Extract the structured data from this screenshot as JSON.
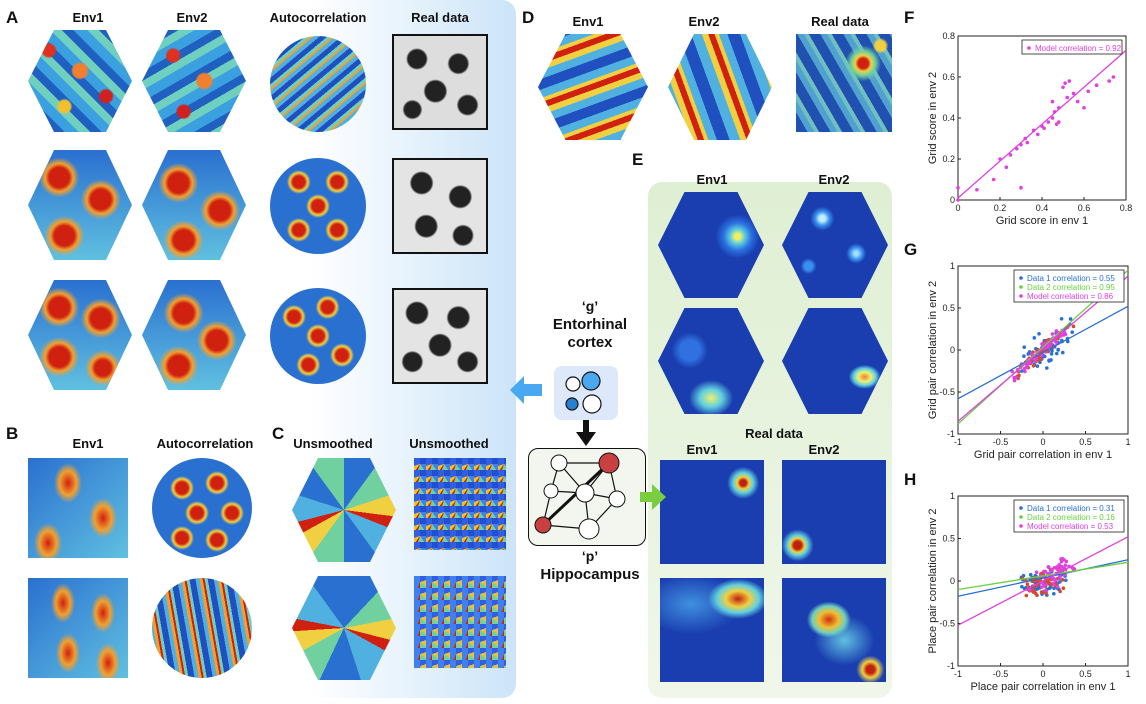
{
  "panels": {
    "A": {
      "label": "A",
      "headers": [
        "Env1",
        "Env2",
        "Autocorrelation",
        "Real data"
      ]
    },
    "B": {
      "label": "B",
      "headers": [
        "Env1",
        "Autocorrelation"
      ]
    },
    "C": {
      "label": "C",
      "headers": [
        "Unsmoothed",
        "Unsmoothed"
      ]
    },
    "D": {
      "label": "D",
      "headers": [
        "Env1",
        "Env2",
        "Real data"
      ]
    },
    "E": {
      "label": "E",
      "headers": [
        "Env1",
        "Env2"
      ],
      "real_title": "Real data",
      "real_headers": [
        "Env1",
        "Env2"
      ]
    },
    "F": {
      "label": "F"
    },
    "G": {
      "label": "G"
    },
    "H": {
      "label": "H"
    }
  },
  "diagram": {
    "g_label": "‘g’",
    "g_name_line1": "Entorhinal",
    "g_name_line2": "cortex",
    "p_label": "‘p’",
    "p_name": "Hippocampus"
  },
  "chart_data": [
    {
      "id": "F",
      "type": "scatter",
      "xlabel": "Grid score in env 1",
      "ylabel": "Grid score in env 2",
      "xlim": [
        0,
        0.8
      ],
      "ylim": [
        0,
        0.8
      ],
      "xticks": [
        "0",
        "0.2",
        "0.4",
        "0.6",
        "0.8"
      ],
      "yticks": [
        "0",
        "0.2",
        "0.4",
        "0.6",
        "0.8"
      ],
      "legend": [
        "Model correlation = 0.92"
      ],
      "legend_position": "top-right",
      "series": [
        {
          "name": "Model correlation = 0.92",
          "color": "#e040e0",
          "x": [
            0.0,
            0.09,
            0.17,
            0.2,
            0.23,
            0.25,
            0.28,
            0.3,
            0.32,
            0.33,
            0.36,
            0.38,
            0.4,
            0.41,
            0.43,
            0.45,
            0.46,
            0.47,
            0.48,
            0.5,
            0.51,
            0.52,
            0.53,
            0.55,
            0.57,
            0.6,
            0.66,
            0.72,
            0.74,
            0.0,
            0.3,
            0.45,
            0.48,
            0.62
          ],
          "y": [
            0.06,
            0.05,
            0.1,
            0.2,
            0.16,
            0.22,
            0.25,
            0.27,
            0.3,
            0.28,
            0.34,
            0.32,
            0.36,
            0.35,
            0.38,
            0.4,
            0.43,
            0.37,
            0.45,
            0.55,
            0.57,
            0.5,
            0.58,
            0.52,
            0.48,
            0.45,
            0.56,
            0.58,
            0.6,
            0.0,
            0.06,
            0.48,
            0.38,
            0.53
          ],
          "fit": [
            [
              0,
              0.01
            ],
            [
              0.8,
              0.73
            ]
          ]
        }
      ]
    },
    {
      "id": "G",
      "type": "scatter",
      "xlabel": "Grid pair correlation in env 1",
      "ylabel": "Grid pair correlation in env 2",
      "xlim": [
        -1,
        1
      ],
      "ylim": [
        -1,
        1
      ],
      "xticks": [
        "-1",
        "-0.5",
        "0",
        "0.5",
        "1"
      ],
      "yticks": [
        "-1",
        "-0.5",
        "0",
        "0.5",
        "1"
      ],
      "legend": [
        "Data 1 correlation = 0.55",
        "Data 2 correlation = 0.95",
        "Model correlation = 0.86"
      ],
      "legend_position": "top-right",
      "series": [
        {
          "name": "Data 1 correlation = 0.55",
          "color": "#2a6fd6",
          "fit": [
            [
              -1,
              -0.58
            ],
            [
              1,
              0.52
            ]
          ]
        },
        {
          "name": "Data 2 correlation = 0.95",
          "color": "#d64a2a",
          "fit": [
            [
              -1,
              -0.88
            ],
            [
              1,
              0.95
            ]
          ]
        },
        {
          "name": "Model correlation = 0.86",
          "color": "#e040e0",
          "fit": [
            [
              -1,
              -0.85
            ],
            [
              1,
              0.88
            ]
          ]
        }
      ],
      "extra_fit_color": "#6ad040"
    },
    {
      "id": "H",
      "type": "scatter",
      "xlabel": "Place pair correlation in env 1",
      "ylabel": "Place pair correlation in env 2",
      "xlim": [
        -1,
        1
      ],
      "ylim": [
        -1,
        1
      ],
      "xticks": [
        "-1",
        "-0.5",
        "0",
        "0.5",
        "1"
      ],
      "yticks": [
        "-1",
        "-0.5",
        "0",
        "0.5",
        "1"
      ],
      "legend": [
        "Data 1 correlation = 0.31",
        "Data 2 correlation = 0.16",
        "Model correlation = 0.53"
      ],
      "legend_position": "top-right",
      "series": [
        {
          "name": "Data 1 correlation = 0.31",
          "color": "#2a6fd6",
          "fit": [
            [
              -1,
              -0.18
            ],
            [
              1,
              0.25
            ]
          ]
        },
        {
          "name": "Data 2 correlation = 0.16",
          "color": "#d64a2a",
          "fit": [
            [
              -1,
              -0.1
            ],
            [
              1,
              0.22
            ]
          ]
        },
        {
          "name": "Model correlation = 0.53",
          "color": "#e040e0",
          "fit": [
            [
              -1,
              -0.52
            ],
            [
              1,
              0.52
            ]
          ]
        }
      ],
      "extra_fit_color": "#6ad040"
    }
  ]
}
